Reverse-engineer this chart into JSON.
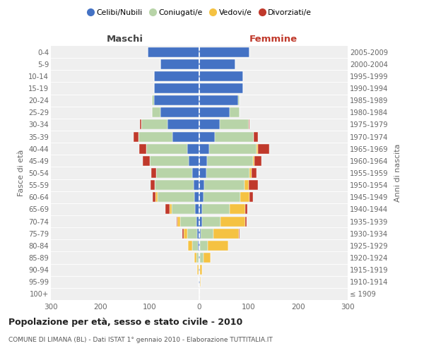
{
  "age_groups": [
    "100+",
    "95-99",
    "90-94",
    "85-89",
    "80-84",
    "75-79",
    "70-74",
    "65-69",
    "60-64",
    "55-59",
    "50-54",
    "45-49",
    "40-44",
    "35-39",
    "30-34",
    "25-29",
    "20-24",
    "15-19",
    "10-14",
    "5-9",
    "0-4"
  ],
  "birth_years": [
    "≤ 1909",
    "1910-1914",
    "1915-1919",
    "1920-1924",
    "1925-1929",
    "1930-1934",
    "1935-1939",
    "1940-1944",
    "1945-1949",
    "1950-1954",
    "1955-1959",
    "1960-1964",
    "1965-1969",
    "1970-1974",
    "1975-1979",
    "1980-1984",
    "1985-1989",
    "1990-1994",
    "1995-1999",
    "2000-2004",
    "2005-2009"
  ],
  "maschi_celibi": [
    0,
    1,
    1,
    2,
    3,
    4,
    6,
    8,
    10,
    12,
    15,
    22,
    25,
    55,
    65,
    78,
    92,
    92,
    92,
    78,
    105
  ],
  "maschi_coniugati": [
    0,
    0,
    1,
    4,
    12,
    20,
    32,
    48,
    75,
    78,
    72,
    78,
    82,
    68,
    52,
    18,
    4,
    0,
    0,
    0,
    0
  ],
  "maschi_vedovi": [
    0,
    1,
    2,
    4,
    8,
    8,
    6,
    4,
    4,
    0,
    0,
    0,
    0,
    0,
    0,
    0,
    0,
    0,
    0,
    0,
    0
  ],
  "maschi_divorziati": [
    0,
    0,
    0,
    0,
    0,
    2,
    2,
    8,
    5,
    8,
    10,
    15,
    15,
    10,
    3,
    0,
    0,
    0,
    0,
    0,
    0
  ],
  "femmine_nubili": [
    0,
    1,
    1,
    2,
    2,
    3,
    5,
    6,
    8,
    10,
    14,
    16,
    20,
    32,
    42,
    62,
    78,
    88,
    88,
    73,
    102
  ],
  "femmine_coniugate": [
    0,
    0,
    1,
    6,
    15,
    25,
    38,
    55,
    75,
    82,
    88,
    92,
    95,
    78,
    58,
    20,
    4,
    0,
    0,
    0,
    0
  ],
  "femmine_vedove": [
    0,
    2,
    4,
    15,
    42,
    52,
    50,
    32,
    18,
    8,
    4,
    4,
    4,
    0,
    0,
    0,
    0,
    0,
    0,
    0,
    0
  ],
  "femmine_divorziate": [
    0,
    0,
    0,
    0,
    0,
    2,
    2,
    4,
    8,
    18,
    10,
    14,
    22,
    8,
    2,
    0,
    0,
    0,
    0,
    0,
    0
  ],
  "colors": {
    "celibi": "#4472c4",
    "coniugati": "#b8d4a8",
    "vedovi": "#f5c242",
    "divorziati": "#c0392b"
  },
  "xlim": 300,
  "title": "Popolazione per età, sesso e stato civile - 2010",
  "subtitle": "COMUNE DI LIMANA (BL) - Dati ISTAT 1° gennaio 2010 - Elaborazione TUTTITALIA.IT",
  "ylabel_left": "Fasce di età",
  "ylabel_right": "Anni di nascita",
  "xlabel_left": "Maschi",
  "xlabel_right": "Femmine",
  "bg_color": "#efefef"
}
